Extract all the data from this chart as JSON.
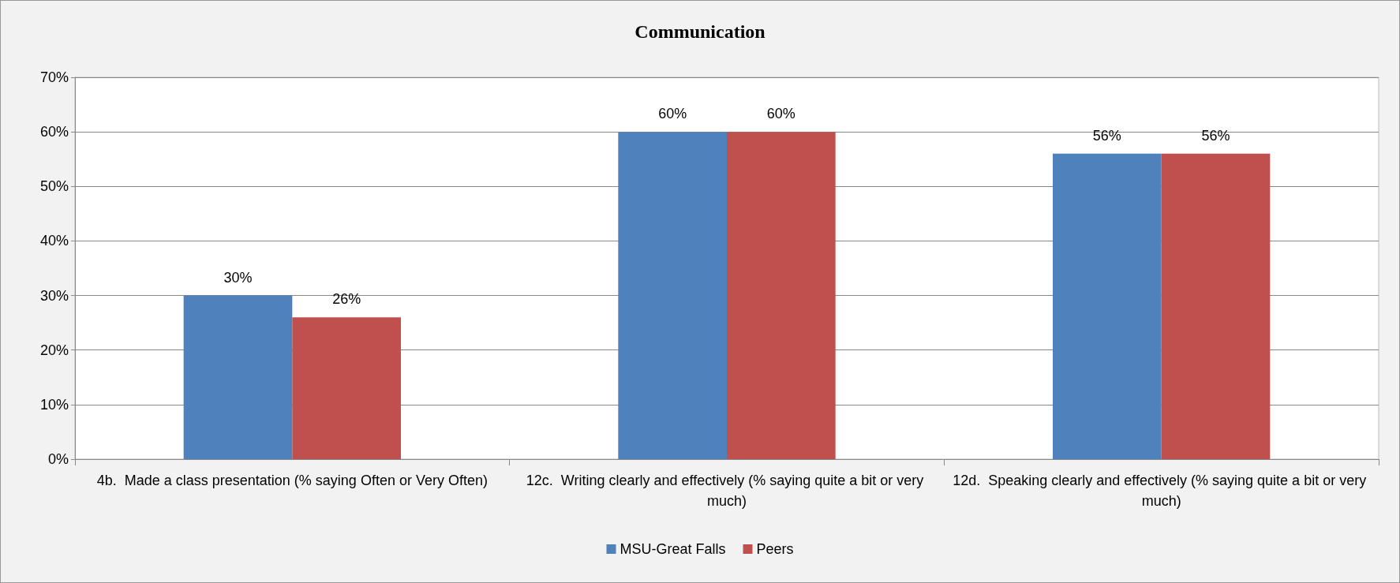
{
  "chart_data": {
    "type": "bar",
    "title": "Communication",
    "categories": [
      "4b.  Made a class presentation (% saying Often or Very Often)",
      "12c.  Writing clearly and effectively (% saying quite a bit or very much)",
      "12d.  Speaking clearly and effectively (% saying quite a bit or very much)"
    ],
    "series": [
      {
        "name": "MSU-Great Falls",
        "color": "#4f81bd",
        "values": [
          30,
          60,
          56
        ],
        "value_labels": [
          "30%",
          "60%",
          "56%"
        ]
      },
      {
        "name": "Peers",
        "color": "#c0504d",
        "values": [
          26,
          60,
          56
        ],
        "value_labels": [
          "26%",
          "60%",
          "56%"
        ]
      }
    ],
    "ylim": [
      0,
      70
    ],
    "yticks": [
      {
        "value": 0,
        "label": "0%"
      },
      {
        "value": 10,
        "label": "10%"
      },
      {
        "value": 20,
        "label": "20%"
      },
      {
        "value": 30,
        "label": "30%"
      },
      {
        "value": 40,
        "label": "40%"
      },
      {
        "value": 50,
        "label": "50%"
      },
      {
        "value": 60,
        "label": "60%"
      },
      {
        "value": 70,
        "label": "70%"
      }
    ],
    "grid": "y",
    "legend": "bottom"
  }
}
